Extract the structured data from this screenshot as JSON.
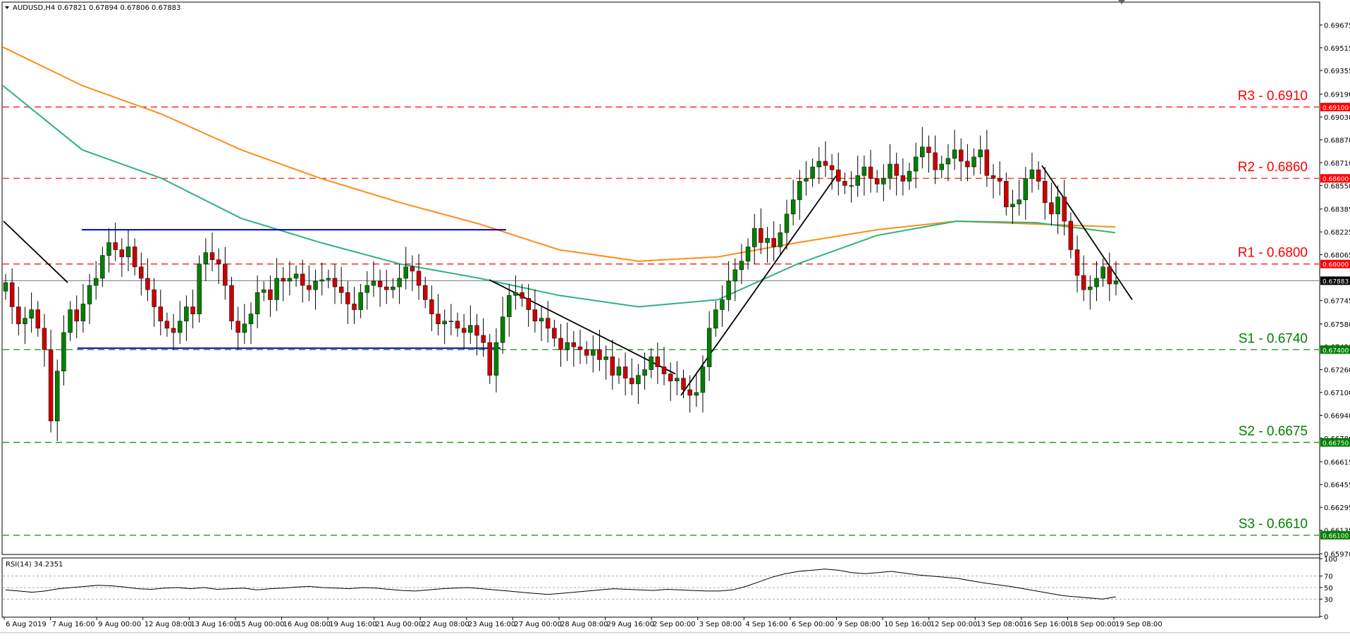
{
  "window": {
    "header_text": "AUDUSD,H4  0.67821 0.67894 0.67806 0.67883",
    "rsi_header": "RSI(14) 34.2351"
  },
  "colors": {
    "resistance": "#ff0000",
    "support": "#008000",
    "ma_fast": "#2fb37a",
    "ma_slow": "#ff8c1a",
    "bull_candle": "#008000",
    "bear_candle": "#cc0000",
    "channel": "#0000cc",
    "trendline": "#000000",
    "current_price_tag": "#000000"
  },
  "chart_data": {
    "type": "candlestick",
    "symbol": "AUDUSD",
    "timeframe": "H4",
    "ohlc": {
      "open": 0.67821,
      "high": 0.67894,
      "low": 0.67806,
      "close": 0.67883
    },
    "current_price": 0.67883,
    "ylim": [
      0.6597,
      0.6983
    ],
    "y_ticks": [
      "0.69675",
      "0.69515",
      "0.69355",
      "0.69190",
      "0.69030",
      "0.68870",
      "0.68710",
      "0.68550",
      "0.68385",
      "0.68225",
      "0.68065",
      "0.67745",
      "0.67580",
      "0.67420",
      "0.67260",
      "0.67100",
      "0.66940",
      "0.66780",
      "0.66615",
      "0.66455",
      "0.66295",
      "0.66135",
      "0.65970"
    ],
    "x_ticks": [
      "6 Aug 2019",
      "7 Aug 16:00",
      "9 Aug 00:00",
      "12 Aug 08:00",
      "13 Aug 16:00",
      "15 Aug 00:00",
      "16 Aug 08:00",
      "19 Aug 16:00",
      "21 Aug 00:00",
      "22 Aug 08:00",
      "23 Aug 16:00",
      "27 Aug 00:00",
      "28 Aug 08:00",
      "29 Aug 16:00",
      "2 Sep 00:00",
      "3 Sep 08:00",
      "4 Sep 16:00",
      "6 Sep 00:00",
      "9 Sep 08:00",
      "10 Sep 16:00",
      "12 Sep 00:00",
      "13 Sep 08:00",
      "16 Sep 16:00",
      "18 Sep 00:00",
      "19 Sep 08:00"
    ],
    "levels": [
      {
        "name": "R3",
        "label": "R3 - 0.6910",
        "value": 0.691,
        "tag": "0.69100",
        "kind": "resistance"
      },
      {
        "name": "R2",
        "label": "R2 - 0.6860",
        "value": 0.686,
        "tag": "0.68600",
        "kind": "resistance"
      },
      {
        "name": "R1",
        "label": "R1 - 0.6800",
        "value": 0.68,
        "tag": "0.68000",
        "kind": "resistance"
      },
      {
        "name": "S1",
        "label": "S1 - 0.6740",
        "value": 0.674,
        "tag": "0.67400",
        "kind": "support"
      },
      {
        "name": "S2",
        "label": "S2 - 0.6675",
        "value": 0.6675,
        "tag": "0.66750",
        "kind": "support"
      },
      {
        "name": "S3",
        "label": "S3 - 0.6610",
        "value": 0.661,
        "tag": "0.66100",
        "kind": "support"
      }
    ],
    "current_tag": "0.67883",
    "close_series": [
      0.6787,
      0.677,
      0.6758,
      0.6762,
      0.6768,
      0.6755,
      0.674,
      0.669,
      0.6725,
      0.6752,
      0.6768,
      0.676,
      0.6772,
      0.6785,
      0.679,
      0.6806,
      0.6815,
      0.681,
      0.6805,
      0.6812,
      0.6798,
      0.679,
      0.6782,
      0.677,
      0.676,
      0.6755,
      0.6752,
      0.676,
      0.677,
      0.6765,
      0.68,
      0.6808,
      0.6803,
      0.68,
      0.6785,
      0.676,
      0.6752,
      0.6758,
      0.6765,
      0.678,
      0.6782,
      0.6775,
      0.679,
      0.6788,
      0.679,
      0.6793,
      0.6785,
      0.6782,
      0.6788,
      0.6789,
      0.679,
      0.6784,
      0.678,
      0.6772,
      0.6768,
      0.678,
      0.6785,
      0.6788,
      0.6784,
      0.6782,
      0.6784,
      0.679,
      0.6798,
      0.6795,
      0.6785,
      0.6775,
      0.6765,
      0.6758,
      0.676,
      0.676,
      0.6755,
      0.6752,
      0.6757,
      0.675,
      0.6745,
      0.6722,
      0.6745,
      0.6763,
      0.6778,
      0.678,
      0.6776,
      0.6768,
      0.676,
      0.6762,
      0.6755,
      0.6748,
      0.674,
      0.6745,
      0.6742,
      0.674,
      0.6736,
      0.674,
      0.6733,
      0.6735,
      0.6722,
      0.6728,
      0.672,
      0.6716,
      0.6722,
      0.6726,
      0.6735,
      0.6728,
      0.6723,
      0.6718,
      0.672,
      0.6712,
      0.6708,
      0.671,
      0.6728,
      0.6755,
      0.6768,
      0.6775,
      0.6788,
      0.6796,
      0.6802,
      0.6812,
      0.6825,
      0.6815,
      0.6818,
      0.6812,
      0.6822,
      0.6835,
      0.6845,
      0.6858,
      0.686,
      0.6868,
      0.6872,
      0.6869,
      0.6866,
      0.6858,
      0.6855,
      0.6855,
      0.6862,
      0.6868,
      0.686,
      0.6856,
      0.686,
      0.687,
      0.6862,
      0.6858,
      0.6865,
      0.6875,
      0.6882,
      0.6878,
      0.6866,
      0.687,
      0.6874,
      0.688,
      0.6872,
      0.6868,
      0.6875,
      0.688,
      0.6862,
      0.686,
      0.6858,
      0.684,
      0.6842,
      0.6845,
      0.686,
      0.6866,
      0.6858,
      0.6843,
      0.6835,
      0.6847,
      0.683,
      0.681,
      0.6792,
      0.6782,
      0.6784,
      0.679,
      0.6798,
      0.6786,
      0.6788
    ],
    "ma_100": [
      0.6925,
      0.688,
      0.686,
      0.6832,
      0.6815,
      0.68,
      0.679,
      0.6778,
      0.677,
      0.6775,
      0.68,
      0.682,
      0.683,
      0.6829,
      0.6822
    ],
    "ma_200": [
      0.6952,
      0.6925,
      0.6905,
      0.688,
      0.686,
      0.6843,
      0.6828,
      0.681,
      0.6802,
      0.6805,
      0.6815,
      0.6824,
      0.683,
      0.6828,
      0.6826
    ],
    "channel": {
      "upper": 0.6824,
      "lower": 0.6741
    },
    "rsi": {
      "name": "RSI(14)",
      "value": 34.2351,
      "ylim": [
        0,
        100
      ],
      "y_ticks": [
        "100",
        "70",
        "50",
        "30",
        "0"
      ],
      "series": [
        46,
        44,
        42,
        44,
        48,
        50,
        52,
        54,
        53,
        51,
        48,
        47,
        49,
        50,
        48,
        50,
        47,
        48,
        49,
        46,
        48,
        49,
        51,
        52,
        50,
        49,
        48,
        50,
        49,
        47,
        45,
        44,
        46,
        48,
        49,
        50,
        48,
        46,
        44,
        42,
        40,
        38,
        40,
        42,
        44,
        46,
        48,
        47,
        46,
        45,
        47,
        46,
        45,
        44,
        44,
        46,
        52,
        60,
        68,
        74,
        78,
        80,
        82,
        80,
        76,
        74,
        76,
        78,
        75,
        72,
        70,
        68,
        66,
        62,
        58,
        55,
        52,
        48,
        44,
        40,
        36,
        34,
        32,
        30,
        34
      ]
    }
  }
}
